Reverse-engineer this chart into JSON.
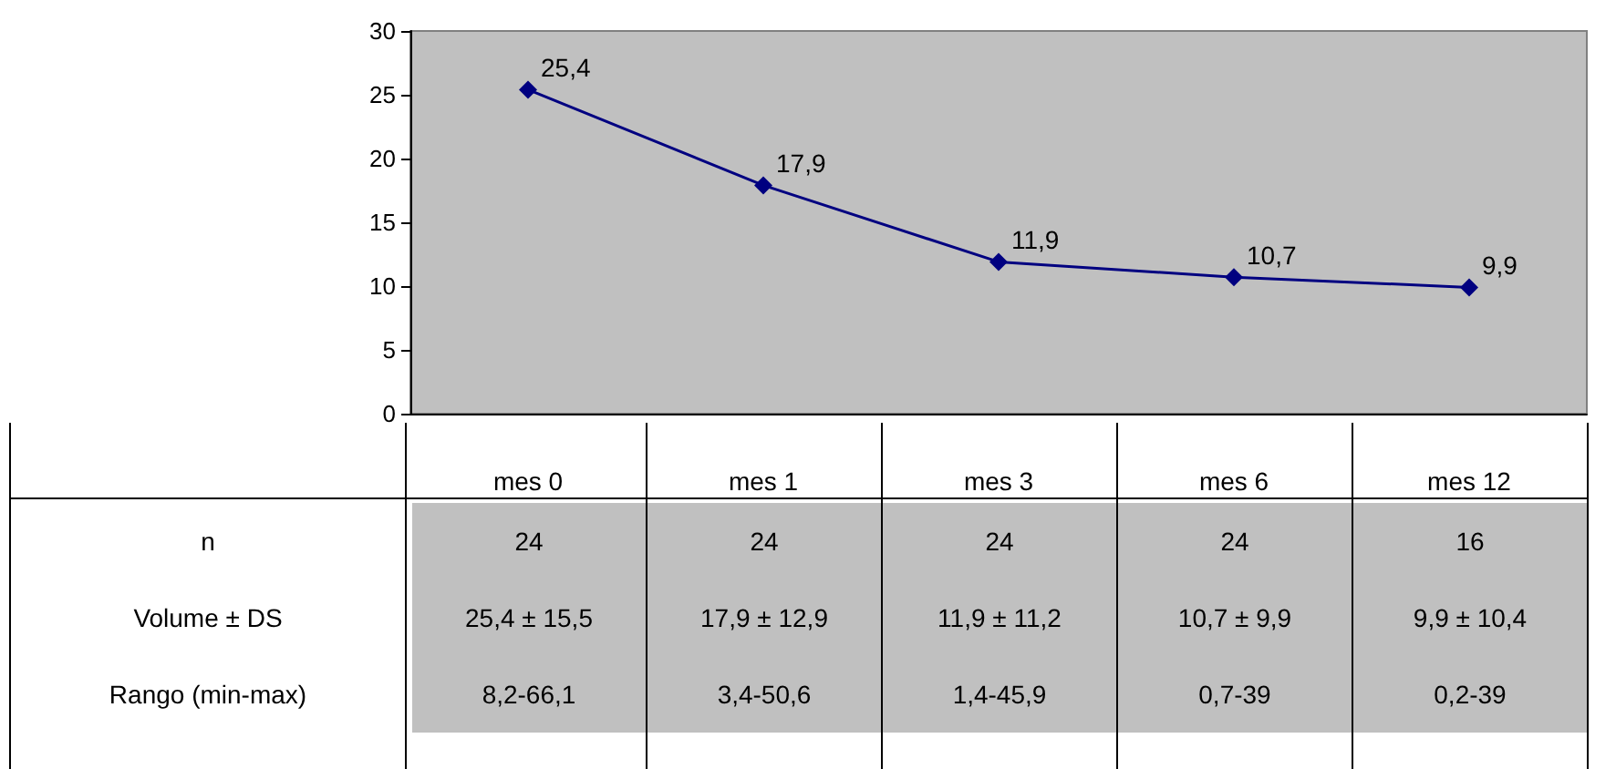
{
  "chart_data": {
    "type": "line",
    "categories": [
      "mes 0",
      "mes 1",
      "mes 3",
      "mes 6",
      "mes 12"
    ],
    "series": [
      {
        "color": "#000080",
        "values": [
          25.4,
          17.9,
          11.9,
          10.7,
          9.9
        ],
        "value_labels": [
          "25,4",
          "17,9",
          "11,9",
          "10,7",
          "9,9"
        ]
      }
    ],
    "ylim": [
      0,
      30
    ],
    "yticks": [
      0,
      5,
      10,
      15,
      20,
      25,
      30
    ],
    "grid": false,
    "marker": "diamond",
    "line_style": "solid",
    "annotations": [
      "n",
      "24",
      "24",
      "24",
      "24",
      "16",
      "Volume ± DS",
      "25,4 ± 15,5",
      "17,9 ± 12,9",
      "11,9 ± 11,2",
      "10,7 ± 9,9",
      "9,9 ± 10,4",
      "Rango (min-max)",
      "8,2-66,1",
      "3,4-50,6",
      "1,4-45,9",
      "0,7-39",
      "0,2-39"
    ]
  }
}
